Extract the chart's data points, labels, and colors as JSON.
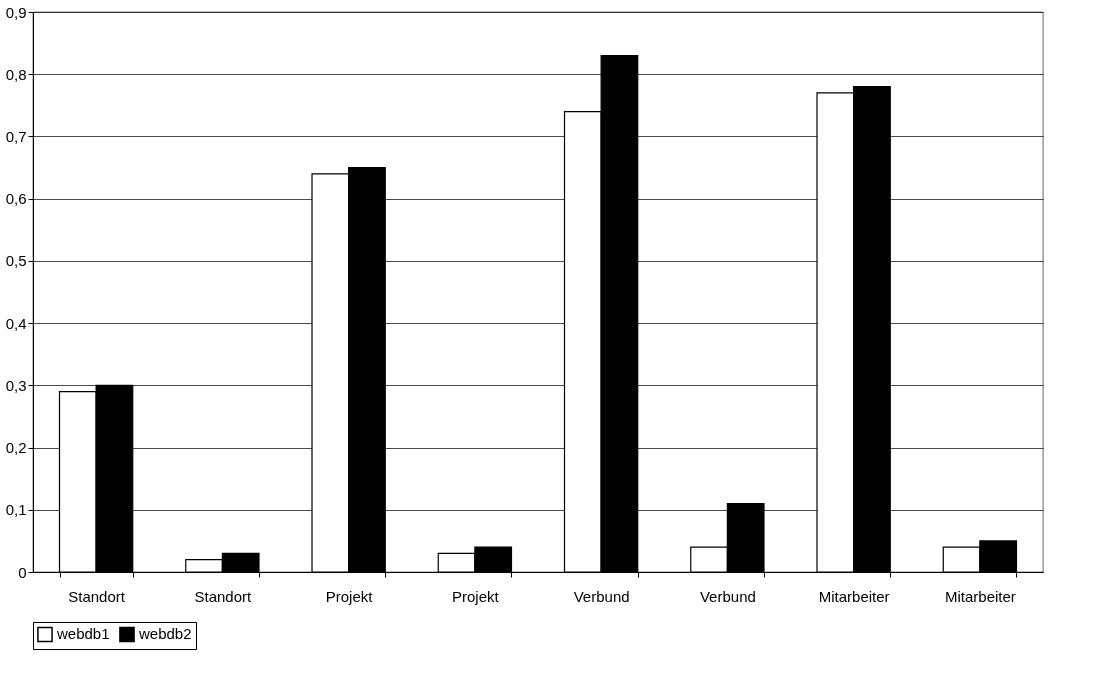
{
  "chart_data": {
    "type": "bar",
    "categories": [
      "Standort",
      "Standort",
      "Projekt",
      "Projekt",
      "Verbund",
      "Verbund",
      "Mitarbeiter",
      "Mitarbeiter"
    ],
    "series": [
      {
        "name": "webdb1",
        "color": "#ffffff",
        "values": [
          0.29,
          0.02,
          0.64,
          0.03,
          0.74,
          0.04,
          0.77,
          0.04
        ]
      },
      {
        "name": "webdb2",
        "color": "#000000",
        "values": [
          0.3,
          0.03,
          0.65,
          0.04,
          0.83,
          0.11,
          0.78,
          0.05
        ]
      }
    ],
    "ylim": [
      0,
      0.9
    ],
    "yticks": [
      0,
      {
        "value": 0.1,
        "label": "0,1"
      },
      {
        "value": 0.2,
        "label": "0,2"
      },
      {
        "value": 0.3,
        "label": "0,3"
      },
      {
        "value": 0.4,
        "label": "0,4"
      },
      {
        "value": 0.5,
        "label": "0,5"
      },
      {
        "value": 0.6,
        "label": "0,6"
      },
      {
        "value": 0.7,
        "label": "0,7"
      },
      {
        "value": 0.8,
        "label": "0,8"
      },
      {
        "value": 0.9,
        "label": "0,9"
      }
    ],
    "grid": "y",
    "legend": "bottom"
  }
}
